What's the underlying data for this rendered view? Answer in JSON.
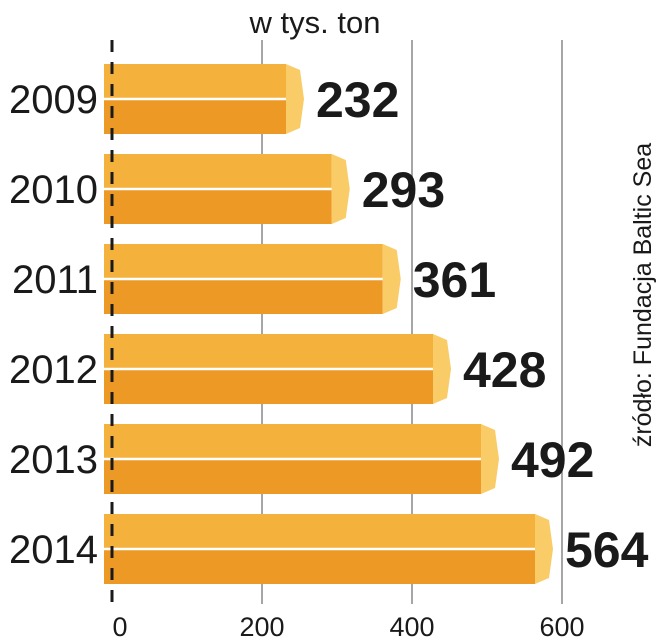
{
  "chart_data": {
    "type": "bar",
    "orientation": "horizontal",
    "unit_label": "w tys. ton",
    "categories": [
      "2009",
      "2010",
      "2011",
      "2012",
      "2013",
      "2014"
    ],
    "values": [
      232,
      293,
      361,
      428,
      492,
      564
    ],
    "value_labels": [
      "232",
      "293",
      "361",
      "428",
      "492",
      "564"
    ],
    "x_ticks": [
      0,
      200,
      400,
      600
    ],
    "xlim": [
      0,
      600
    ],
    "grid": true,
    "source": "źródło: Fundacja Baltic Sea",
    "colors": {
      "bar_top": "#f4b13c",
      "bar_bottom": "#ec9a25",
      "bar_highlight": "#ffffff",
      "bar_tip": "#f9cc68",
      "text": "#1a1a1a",
      "grid": "#888888",
      "axis": "#1a1a1a"
    }
  }
}
